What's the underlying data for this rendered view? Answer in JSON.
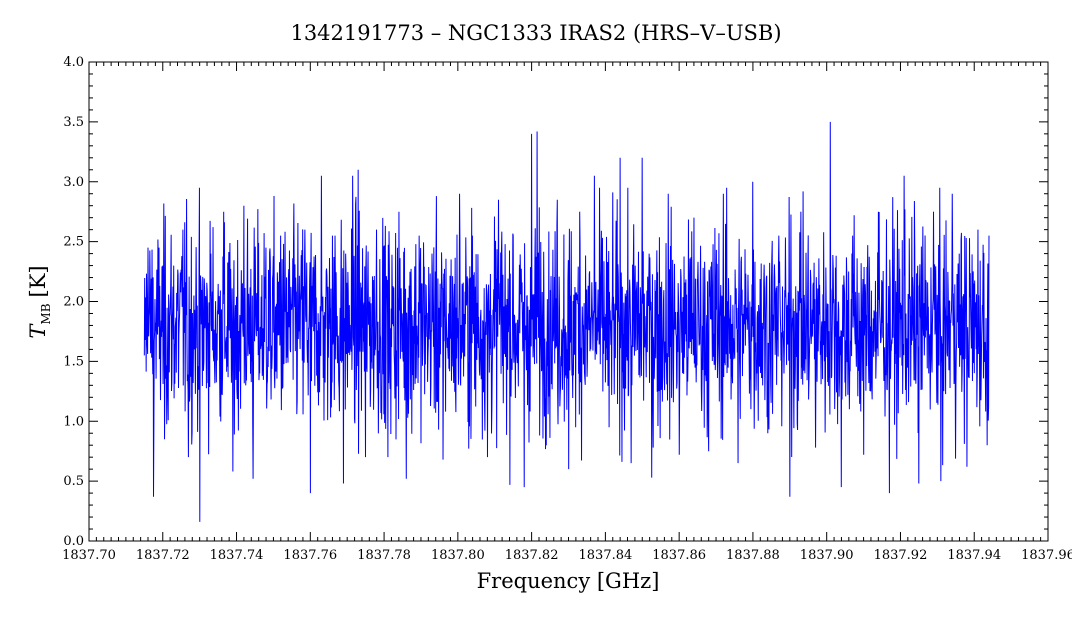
{
  "chart_data": {
    "type": "line",
    "title": "1342191773 – NGC1333 IRAS2 (HRS–V–USB)",
    "xlabel": "Frequency [GHz]",
    "ylabel": {
      "symbol": "T",
      "subscript": "MB",
      "unit": "[K]"
    },
    "xlim": [
      1837.7,
      1837.96
    ],
    "ylim": [
      0.0,
      4.0
    ],
    "x_ticks": [
      "1837.70",
      "1837.72",
      "1837.74",
      "1837.76",
      "1837.78",
      "1837.80",
      "1837.82",
      "1837.84",
      "1837.86",
      "1837.88",
      "1837.90",
      "1837.92",
      "1837.94",
      "1837.96"
    ],
    "y_ticks": [
      "0.0",
      "0.5",
      "1.0",
      "1.5",
      "2.0",
      "2.5",
      "3.0",
      "3.5",
      "4.0"
    ],
    "grid": false,
    "series": [
      {
        "color": "#0000ff",
        "x_start": 1837.715,
        "x_end": 1837.944,
        "mean": 1.8,
        "noise_sigma": 0.42,
        "points": [
          [
            1837.715,
            1.55
          ],
          [
            1837.716,
            2.45
          ],
          [
            1837.7175,
            0.37
          ],
          [
            1837.719,
            2.45
          ],
          [
            1837.7205,
            0.85
          ],
          [
            1837.723,
            2.3
          ],
          [
            1837.7255,
            2.6
          ],
          [
            1837.727,
            0.7
          ],
          [
            1837.73,
            0.16
          ],
          [
            1837.733,
            2.4
          ],
          [
            1837.7365,
            2.75
          ],
          [
            1837.739,
            0.58
          ],
          [
            1837.742,
            2.8
          ],
          [
            1837.7445,
            0.52
          ],
          [
            1837.748,
            2.45
          ],
          [
            1837.752,
            2.55
          ],
          [
            1837.756,
            2.2
          ],
          [
            1837.7585,
            2.6
          ],
          [
            1837.76,
            0.4
          ],
          [
            1837.763,
            3.05
          ],
          [
            1837.766,
            2.55
          ],
          [
            1837.769,
            0.48
          ],
          [
            1837.7715,
            3.05
          ],
          [
            1837.773,
            3.1
          ],
          [
            1837.775,
            0.7
          ],
          [
            1837.778,
            2.6
          ],
          [
            1837.781,
            0.7
          ],
          [
            1837.784,
            2.75
          ],
          [
            1837.786,
            0.52
          ],
          [
            1837.7895,
            2.55
          ],
          [
            1837.793,
            2.4
          ],
          [
            1837.796,
            0.68
          ],
          [
            1837.8005,
            2.9
          ],
          [
            1837.804,
            2.55
          ],
          [
            1837.808,
            0.7
          ],
          [
            1837.811,
            2.85
          ],
          [
            1837.815,
            2.55
          ],
          [
            1837.818,
            0.45
          ],
          [
            1837.82,
            3.4
          ],
          [
            1837.8215,
            3.42
          ],
          [
            1837.824,
            0.8
          ],
          [
            1837.827,
            2.85
          ],
          [
            1837.83,
            0.6
          ],
          [
            1837.833,
            2.75
          ],
          [
            1837.837,
            3.05
          ],
          [
            1837.841,
            0.95
          ],
          [
            1837.844,
            3.2
          ],
          [
            1837.847,
            0.65
          ],
          [
            1837.85,
            3.2
          ],
          [
            1837.853,
            0.78
          ],
          [
            1837.857,
            2.9
          ],
          [
            1837.86,
            0.72
          ],
          [
            1837.864,
            2.7
          ],
          [
            1837.868,
            0.75
          ],
          [
            1837.872,
            2.9
          ],
          [
            1837.876,
            0.65
          ],
          [
            1837.88,
            3.0
          ],
          [
            1837.884,
            0.9
          ],
          [
            1837.887,
            2.55
          ],
          [
            1837.89,
            0.37
          ],
          [
            1837.893,
            2.75
          ],
          [
            1837.897,
            0.78
          ],
          [
            1837.901,
            3.5
          ],
          [
            1837.904,
            0.45
          ],
          [
            1837.907,
            2.55
          ],
          [
            1837.91,
            0.72
          ],
          [
            1837.914,
            2.75
          ],
          [
            1837.917,
            0.4
          ],
          [
            1837.921,
            3.05
          ],
          [
            1837.925,
            0.48
          ],
          [
            1837.929,
            2.75
          ],
          [
            1837.931,
            0.5
          ],
          [
            1837.934,
            2.9
          ],
          [
            1837.938,
            0.62
          ],
          [
            1837.941,
            2.6
          ],
          [
            1837.9435,
            0.8
          ],
          [
            1837.944,
            2.55
          ]
        ]
      }
    ]
  }
}
